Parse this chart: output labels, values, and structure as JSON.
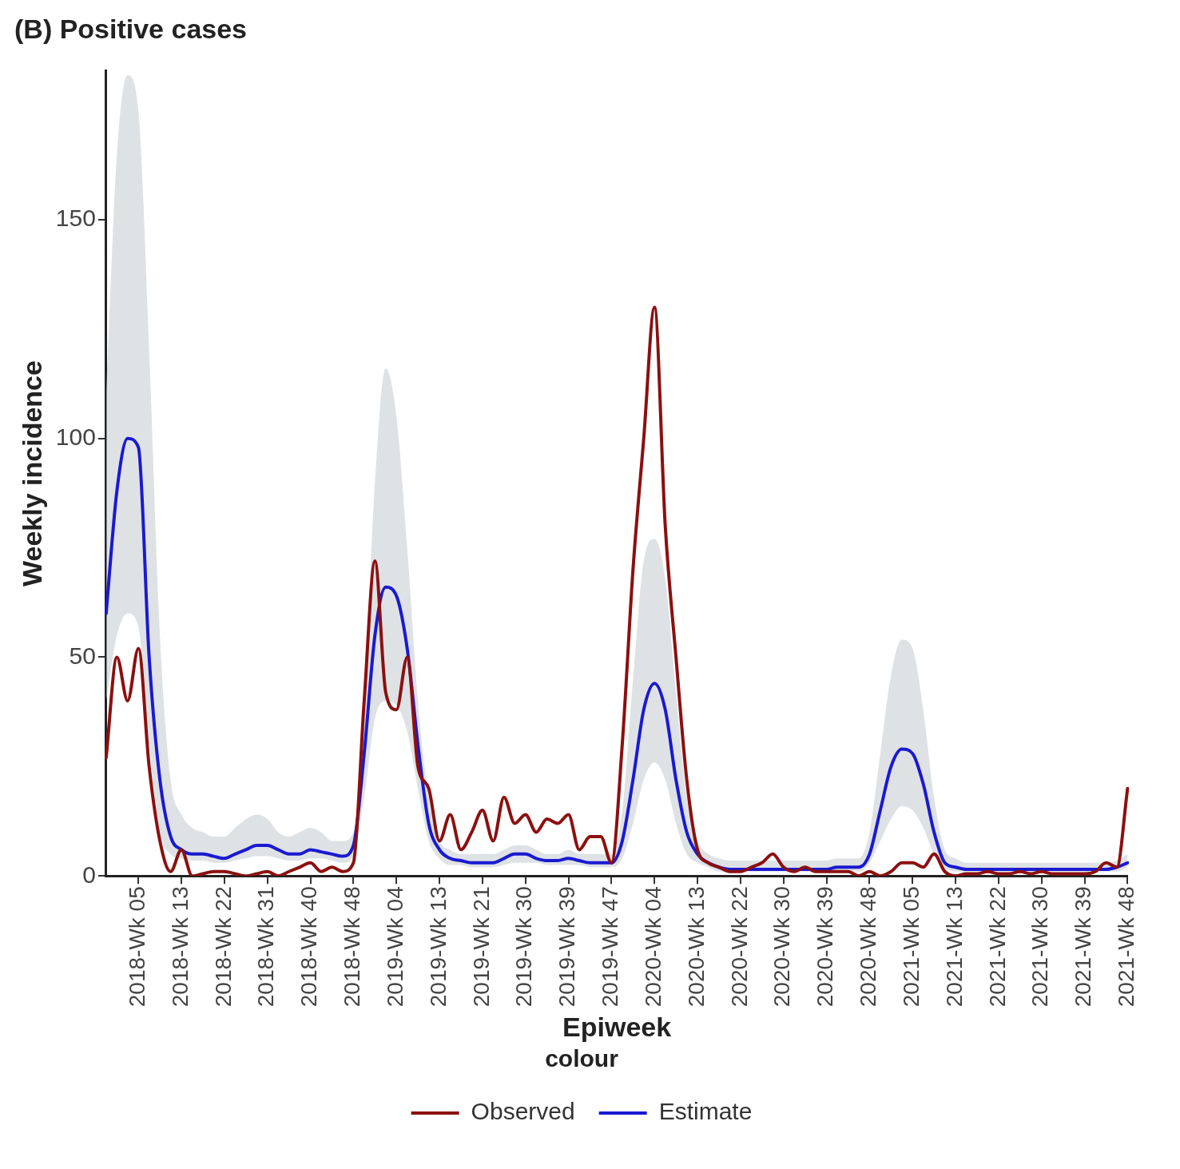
{
  "chart_data": {
    "type": "line",
    "title": "(B) Positive cases",
    "xlabel": "Epiweek",
    "ylabel": "Weekly incidence",
    "legend_title": "colour",
    "legend": "bottom",
    "categories": [
      null,
      null,
      null,
      "2018-Wk 05",
      null,
      null,
      null,
      "2018-Wk 13",
      null,
      null,
      null,
      "2018-Wk 22",
      null,
      null,
      null,
      "2018-Wk 31",
      null,
      null,
      null,
      "2018-Wk 40",
      null,
      null,
      null,
      "2018-Wk 48",
      null,
      null,
      null,
      "2019-Wk 04",
      null,
      null,
      null,
      "2019-Wk 13",
      null,
      null,
      null,
      "2019-Wk 21",
      null,
      null,
      null,
      "2019-Wk 30",
      null,
      null,
      null,
      "2019-Wk 39",
      null,
      null,
      null,
      "2019-Wk 47",
      null,
      null,
      null,
      "2020-Wk 04",
      null,
      null,
      null,
      "2020-Wk 13",
      null,
      null,
      null,
      "2020-Wk 22",
      null,
      null,
      null,
      "2020-Wk 30",
      null,
      null,
      null,
      "2020-Wk 39",
      null,
      null,
      null,
      "2020-Wk 48",
      null,
      null,
      null,
      "2021-Wk 05",
      null,
      null,
      null,
      "2021-Wk 13",
      null,
      null,
      null,
      "2021-Wk 22",
      null,
      null,
      null,
      "2021-Wk 30",
      null,
      null,
      null,
      "2021-Wk 39",
      null,
      null,
      null,
      "2021-Wk 48"
    ],
    "ylim": [
      0,
      184
    ],
    "yticks": [
      0,
      50,
      100,
      150
    ],
    "series": [
      {
        "name": "Estimate",
        "color": "#1a1ad0",
        "values": [
          60,
          88,
          100,
          98,
          50,
          22,
          9,
          6,
          5,
          5,
          4.5,
          4,
          5,
          6,
          7,
          7,
          6,
          5,
          5,
          6,
          5.5,
          5,
          4.5,
          7,
          28,
          55,
          66,
          64,
          52,
          30,
          12,
          6,
          4,
          3.5,
          3,
          3,
          3,
          4,
          5,
          5,
          4,
          3.5,
          3.5,
          4,
          3.5,
          3,
          3,
          3,
          8,
          22,
          38,
          44,
          38,
          22,
          10,
          5,
          3,
          2,
          1.5,
          1.5,
          1.5,
          1.5,
          1.5,
          1.5,
          1.5,
          1.5,
          1.5,
          1.5,
          2,
          2,
          2,
          5,
          15,
          25,
          29,
          28,
          21,
          10,
          3,
          2,
          1.5,
          1.5,
          1.5,
          1.5,
          1.5,
          1.5,
          1.5,
          1.5,
          1.5,
          1.5,
          1.5,
          1.5,
          1.5,
          1.5,
          2,
          3
        ],
        "lower": [
          40,
          55,
          60,
          57,
          30,
          10,
          5,
          4,
          3.5,
          3.5,
          3,
          3,
          3.5,
          4,
          4.5,
          4.5,
          4,
          3.5,
          3.5,
          4,
          4,
          3.5,
          3,
          4.5,
          18,
          36,
          40,
          39,
          33,
          20,
          8,
          4,
          2.5,
          2.5,
          2,
          2,
          2,
          2.5,
          3,
          3,
          3,
          2.5,
          2.5,
          2.5,
          2.5,
          2,
          2,
          2,
          4,
          12,
          22,
          26,
          22,
          12,
          5,
          3,
          2,
          1,
          1,
          1,
          1,
          1,
          1,
          1,
          1,
          1,
          1,
          1,
          1,
          1,
          1,
          3,
          8,
          13,
          16,
          15,
          11,
          5,
          2,
          1,
          1,
          1,
          1,
          1,
          1,
          1,
          1,
          1,
          1,
          1,
          1,
          1,
          1,
          1,
          1,
          2
        ],
        "upper": [
          110,
          165,
          183,
          175,
          120,
          55,
          22,
          14,
          11,
          10,
          9,
          9,
          11,
          13,
          14,
          13,
          10,
          9,
          10,
          11,
          10,
          8,
          8,
          10,
          40,
          90,
          116,
          105,
          75,
          40,
          18,
          8,
          6,
          5,
          5,
          5,
          5,
          6,
          7,
          7,
          6,
          5,
          5,
          6,
          5,
          5,
          5,
          5,
          15,
          45,
          72,
          77,
          68,
          42,
          18,
          8,
          5,
          4,
          3.5,
          3.5,
          3.5,
          3.5,
          3.5,
          3.5,
          3.5,
          3.5,
          3.5,
          3.5,
          4,
          4,
          4,
          10,
          28,
          46,
          54,
          52,
          38,
          18,
          6,
          4,
          3,
          3,
          3,
          3,
          3,
          3,
          3,
          3,
          3,
          3,
          3,
          3,
          3,
          3,
          3.5,
          5
        ]
      },
      {
        "name": "Observed",
        "color": "#8b1010",
        "values": [
          27,
          50,
          40,
          52,
          25,
          8,
          1,
          6,
          0,
          0.5,
          1,
          1,
          0.5,
          0,
          0.5,
          1,
          0,
          1,
          2,
          3,
          1,
          2,
          1,
          3,
          40,
          72,
          42,
          38,
          50,
          25,
          20,
          8,
          14,
          6,
          10,
          15,
          8,
          18,
          12,
          14,
          10,
          13,
          12,
          14,
          6,
          9,
          9,
          3,
          30,
          70,
          100,
          130,
          80,
          50,
          22,
          6,
          3,
          2,
          1,
          1,
          2,
          3,
          5,
          2,
          1,
          2,
          1,
          1,
          1,
          1,
          0,
          1,
          0,
          1,
          3,
          3,
          2,
          5,
          1,
          0,
          0.5,
          0.5,
          1,
          0.5,
          0.5,
          1,
          0.5,
          1,
          0.5,
          0.5,
          0.5,
          0.5,
          1,
          3,
          2,
          20
        ]
      }
    ]
  }
}
